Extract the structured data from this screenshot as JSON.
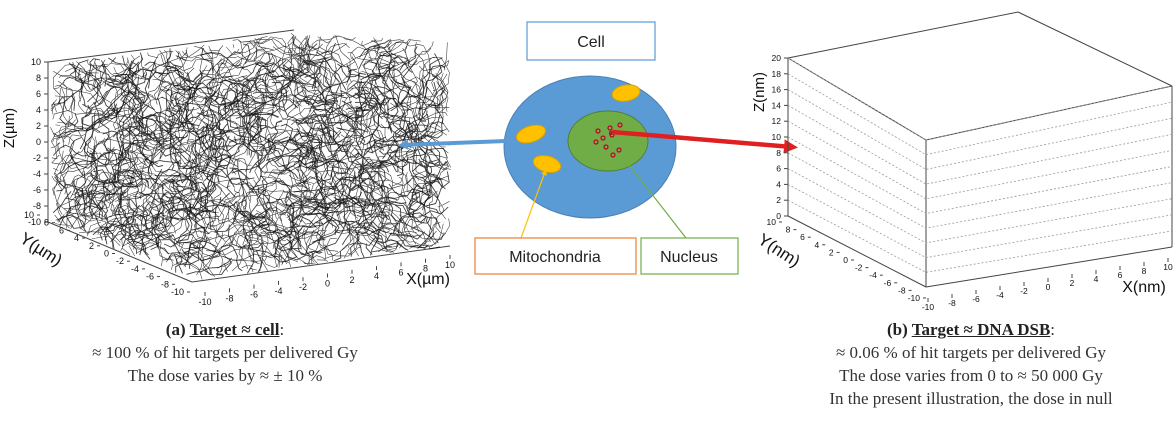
{
  "colors": {
    "cell_fill": "#5b9bd5",
    "nucleus_fill": "#70ad47",
    "mitochondria_fill": "#ffc000",
    "left_arrow": "#5b9bd5",
    "right_arrow": "#e02020",
    "cell_label_border": "#5b9bd5",
    "mito_label_border": "#ed7d31",
    "nucleus_label_border": "#70ad47"
  },
  "left_plot": {
    "z_label": "Z(µm)",
    "y_label": "Y(µm)",
    "x_label": "X(µm)",
    "z_ticks": [
      "-10",
      "-8",
      "-6",
      "-4",
      "-2",
      "0",
      "2",
      "4",
      "6",
      "8",
      "10"
    ],
    "y_ticks": [
      "-10",
      "-8",
      "-6",
      "-4",
      "-2",
      "0",
      "2",
      "4",
      "6",
      "8",
      "10"
    ],
    "x_ticks": [
      "-10",
      "-8",
      "-6",
      "-4",
      "-2",
      "0",
      "2",
      "4",
      "6",
      "8",
      "10"
    ]
  },
  "right_plot": {
    "z_label": "Z(nm)",
    "y_label": "Y(nm)",
    "x_label": "X(nm)",
    "z_ticks": [
      "0",
      "2",
      "4",
      "6",
      "8",
      "10",
      "12",
      "14",
      "16",
      "18",
      "20"
    ],
    "y_ticks": [
      "-10",
      "-8",
      "-6",
      "-4",
      "-2",
      "0",
      "2",
      "4",
      "6",
      "8",
      "10"
    ],
    "x_ticks": [
      "-10",
      "-8",
      "-6",
      "-4",
      "-2",
      "0",
      "2",
      "4",
      "6",
      "8",
      "10"
    ]
  },
  "labels": {
    "cell": "Cell",
    "mitochondria": "Mitochondria",
    "nucleus": "Nucleus"
  },
  "caption_a": {
    "prefix": "(a) ",
    "title": "Target ≈ cell",
    "suffix": ":",
    "line1": "≈ 100 % of hit targets per delivered Gy",
    "line2": "The dose varies by ≈ ± 10 %"
  },
  "caption_b": {
    "prefix": "(b) ",
    "title": "Target ≈ DNA DSB",
    "suffix": ":",
    "line1": "≈ 0.06 % of hit targets per delivered Gy",
    "line2": "The dose varies from 0 to ≈ 50 000 Gy",
    "line3": "In the present illustration, the dose in null"
  }
}
